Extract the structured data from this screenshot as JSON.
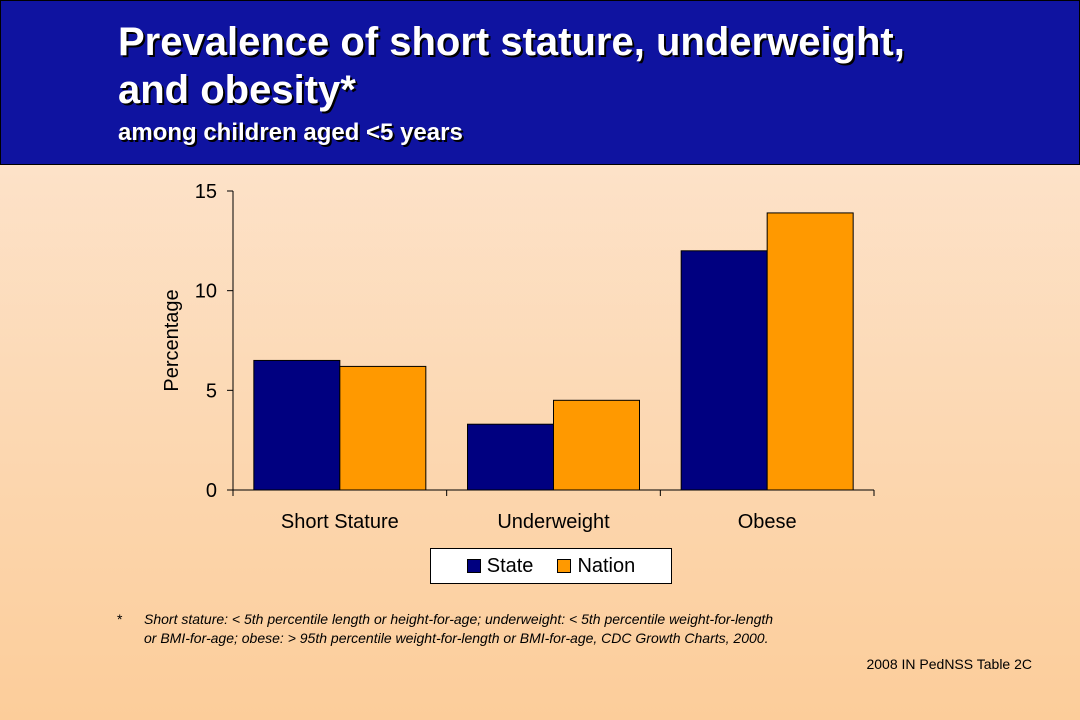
{
  "header": {
    "title_line1": "Prevalence of short stature, underweight,",
    "title_line2": "and obesity*",
    "subtitle": "among children aged <5 years"
  },
  "colors": {
    "header_bg": "#0f13a0",
    "state": "#000080",
    "nation": "#ff9900"
  },
  "chart_data": {
    "type": "bar",
    "title": "",
    "xlabel": "",
    "ylabel": "Percentage",
    "categories": [
      "Short Stature",
      "Underweight",
      "Obese"
    ],
    "series": [
      {
        "name": "State",
        "values": [
          6.5,
          3.3,
          12.0
        ]
      },
      {
        "name": "Nation",
        "values": [
          6.2,
          4.5,
          13.9
        ]
      }
    ],
    "ylim": [
      0,
      15
    ],
    "yticks": [
      "0",
      "5",
      "10",
      "15"
    ],
    "grid": false,
    "legend_position": "bottom"
  },
  "footnote": {
    "marker": "*",
    "line1": "Short stature: < 5th percentile length or height-for-age; underweight: < 5th percentile weight-for-length",
    "line2": "or BMI-for-age; obese: > 95th percentile weight-for-length or BMI-for-age, CDC Growth Charts, 2000."
  },
  "source": "2008 IN PedNSS Table 2C"
}
